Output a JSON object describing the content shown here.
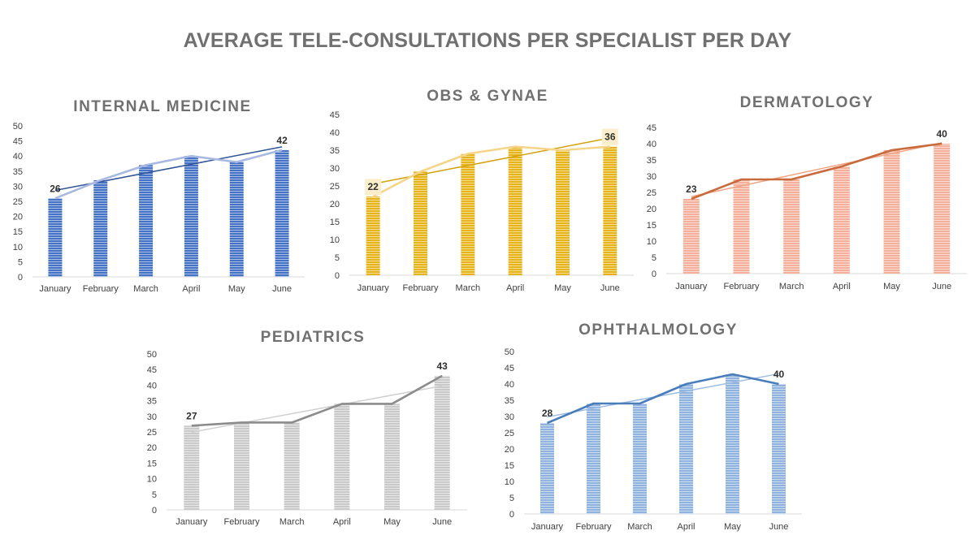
{
  "page": {
    "title": "AVERAGE TELE-CONSULTATIONS PER SPECIALIST PER DAY"
  },
  "chart_data": [
    {
      "type": "bar",
      "title": "INTERNAL MEDICINE",
      "categories": [
        "January",
        "February",
        "March",
        "April",
        "May",
        "June"
      ],
      "series": [
        {
          "name": "Bars",
          "values": [
            26,
            32,
            37,
            40,
            38,
            42
          ]
        },
        {
          "name": "Line",
          "values": [
            26,
            32,
            37,
            40,
            38,
            42
          ]
        }
      ],
      "trendline": {
        "type": "linear"
      },
      "data_labels": {
        "January": "26",
        "June": "42"
      },
      "ylim": [
        0,
        50
      ],
      "ytick_step": 5,
      "colors": {
        "bar": "#4472C4",
        "bar_stripe": "#ffffff",
        "line": "#A9B8E0",
        "trend": "#2F5597"
      }
    },
    {
      "type": "bar",
      "title": "OBS & GYNAE",
      "categories": [
        "January",
        "February",
        "March",
        "April",
        "May",
        "June"
      ],
      "series": [
        {
          "name": "Bars",
          "values": [
            22,
            29,
            34,
            36,
            35,
            36
          ]
        },
        {
          "name": "Line",
          "values": [
            22,
            29,
            34,
            36,
            35,
            36
          ]
        }
      ],
      "trendline": {
        "type": "linear"
      },
      "data_labels": {
        "January": "22",
        "June": "36"
      },
      "ylim": [
        0,
        45
      ],
      "ytick_step": 5,
      "colors": {
        "bar": "#E6B319",
        "bar_stripe": "#ffffff",
        "line": "#F5D58A",
        "trend": "#D4A20C",
        "label_bg": "#FBEFCB"
      }
    },
    {
      "type": "bar",
      "title": "DERMATOLOGY",
      "categories": [
        "January",
        "February",
        "March",
        "April",
        "May",
        "June"
      ],
      "series": [
        {
          "name": "Bars",
          "values": [
            23,
            29,
            29,
            33,
            38,
            40
          ]
        },
        {
          "name": "Line",
          "values": [
            23,
            29,
            29,
            33,
            38,
            40
          ]
        }
      ],
      "trendline": {
        "type": "linear"
      },
      "data_labels": {
        "January": "23",
        "June": "40"
      },
      "ylim": [
        0,
        45
      ],
      "ytick_step": 5,
      "colors": {
        "bar": "#F4B09A",
        "bar_stripe": "#ffffff",
        "line": "#C86A3C",
        "trend": "#F0A585"
      }
    },
    {
      "type": "bar",
      "title": "PEDIATRICS",
      "categories": [
        "January",
        "February",
        "March",
        "April",
        "May",
        "June"
      ],
      "series": [
        {
          "name": "Bars",
          "values": [
            27,
            28,
            28,
            34,
            34,
            43
          ]
        },
        {
          "name": "Line",
          "values": [
            27,
            28,
            28,
            34,
            34,
            43
          ]
        }
      ],
      "trendline": {
        "type": "linear"
      },
      "data_labels": {
        "January": "27",
        "June": "43"
      },
      "ylim": [
        0,
        50
      ],
      "ytick_step": 5,
      "colors": {
        "bar": "#C9C9C9",
        "bar_stripe": "#ffffff",
        "line": "#8C8C8C",
        "trend": "#D0D0D0"
      }
    },
    {
      "type": "bar",
      "title": "OPHTHALMOLOGY",
      "categories": [
        "January",
        "February",
        "March",
        "April",
        "May",
        "June"
      ],
      "series": [
        {
          "name": "Bars",
          "values": [
            28,
            34,
            34,
            40,
            43,
            40
          ]
        },
        {
          "name": "Line",
          "values": [
            28,
            34,
            34,
            40,
            43,
            40
          ]
        }
      ],
      "trendline": {
        "type": "linear"
      },
      "data_labels": {
        "January": "28",
        "June": "40"
      },
      "ylim": [
        0,
        50
      ],
      "ytick_step": 5,
      "colors": {
        "bar": "#8FB3DE",
        "bar_stripe": "#ffffff",
        "line": "#4A7EBB",
        "trend": "#9DBCE3"
      }
    }
  ]
}
